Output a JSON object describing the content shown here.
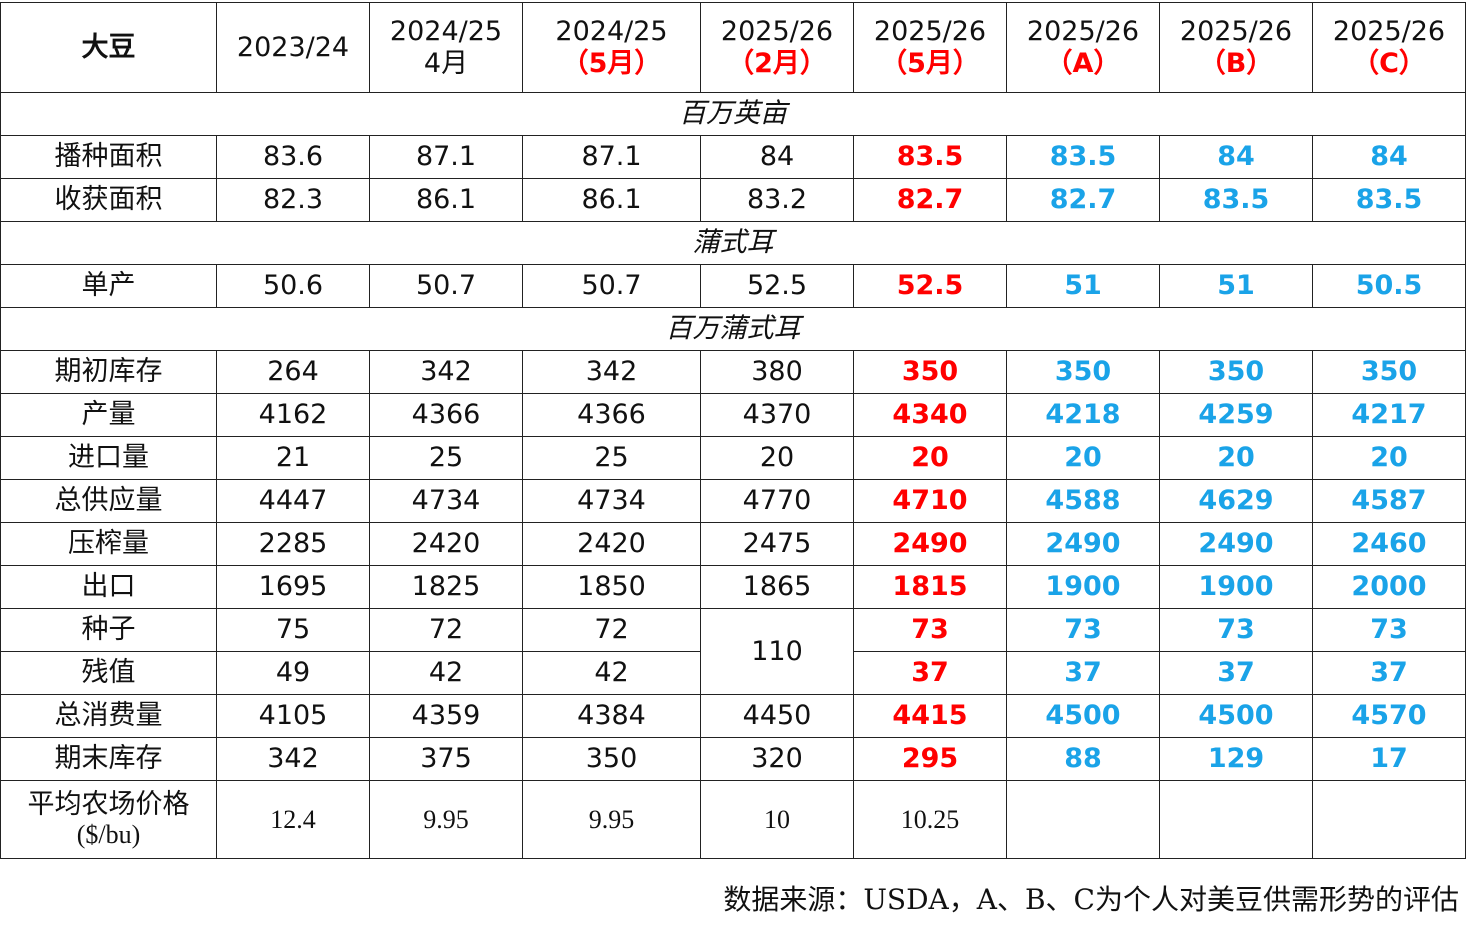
{
  "header": {
    "corner": "大豆",
    "columns": [
      {
        "year": "2023/24"
      },
      {
        "year": "2024/25",
        "note": "4月"
      },
      {
        "year": "2024/25",
        "note": "（5月）",
        "note_color": "#ff0000"
      },
      {
        "year": "2025/26",
        "note": "（2月）",
        "note_color": "#ff0000"
      },
      {
        "year": "2025/26",
        "note": "（5月）",
        "note_color": "#ff0000",
        "value_color": "#ff0000"
      },
      {
        "year": "2025/26",
        "note": "（A）",
        "note_color": "#ff0000",
        "value_color": "#1aa3e8"
      },
      {
        "year": "2025/26",
        "note": "（B）",
        "note_color": "#ff0000",
        "value_color": "#1aa3e8"
      },
      {
        "year": "2025/26",
        "note": "（C）",
        "note_color": "#ff0000",
        "value_color": "#1aa3e8"
      }
    ]
  },
  "table": {
    "sections": [
      {
        "unit": "百万英亩",
        "rows": [
          {
            "label": "播种面积",
            "cells": [
              "83.6",
              "87.1",
              "87.1",
              "84",
              "83.5",
              "83.5",
              "84",
              "84"
            ]
          },
          {
            "label": "收获面积",
            "cells": [
              "82.3",
              "86.1",
              "86.1",
              "83.2",
              "82.7",
              "82.7",
              "83.5",
              "83.5"
            ]
          }
        ]
      },
      {
        "unit": "蒲式耳",
        "rows": [
          {
            "label": "单产",
            "cells": [
              "50.6",
              "50.7",
              "50.7",
              "52.5",
              "52.5",
              "51",
              "51",
              "50.5"
            ]
          }
        ]
      },
      {
        "unit": "百万蒲式耳",
        "rows": [
          {
            "label": "期初库存",
            "cells": [
              "264",
              "342",
              "342",
              "380",
              "350",
              "350",
              "350",
              "350"
            ]
          },
          {
            "label": "产量",
            "cells": [
              "4162",
              "4366",
              "4366",
              "4370",
              "4340",
              "4218",
              "4259",
              "4217"
            ]
          },
          {
            "label": "进口量",
            "cells": [
              "21",
              "25",
              "25",
              "20",
              "20",
              "20",
              "20",
              "20"
            ]
          },
          {
            "label": "总供应量",
            "cells": [
              "4447",
              "4734",
              "4734",
              "4770",
              "4710",
              "4588",
              "4629",
              "4587"
            ]
          },
          {
            "label": "压榨量",
            "cells": [
              "2285",
              "2420",
              "2420",
              "2475",
              "2490",
              "2490",
              "2490",
              "2460"
            ]
          },
          {
            "label": "出口",
            "cells": [
              "1695",
              "1825",
              "1850",
              "1865",
              "1815",
              "1900",
              "1900",
              "2000"
            ]
          },
          {
            "label": "种子",
            "cells": [
              "75",
              "72",
              "72",
              "110",
              "73",
              "73",
              "73",
              "73"
            ]
          },
          {
            "label": "残值",
            "cells": [
              "49",
              "42",
              "42",
              null,
              "37",
              "37",
              "37",
              "37"
            ]
          },
          {
            "label": "总消费量",
            "cells": [
              "4105",
              "4359",
              "4384",
              "4450",
              "4415",
              "4500",
              "4500",
              "4570"
            ]
          },
          {
            "label": "期末库存",
            "cells": [
              "342",
              "375",
              "350",
              "320",
              "295",
              "88",
              "129",
              "17"
            ]
          }
        ]
      }
    ]
  },
  "price_row": {
    "label": "平均农场价格",
    "unit": "($/bu)",
    "cells": [
      "12.4",
      "9.95",
      "9.95",
      "10",
      "10.25"
    ]
  },
  "footnote": "数据来源：USDA，A、B、C为个人对美豆供需形势的评估"
}
